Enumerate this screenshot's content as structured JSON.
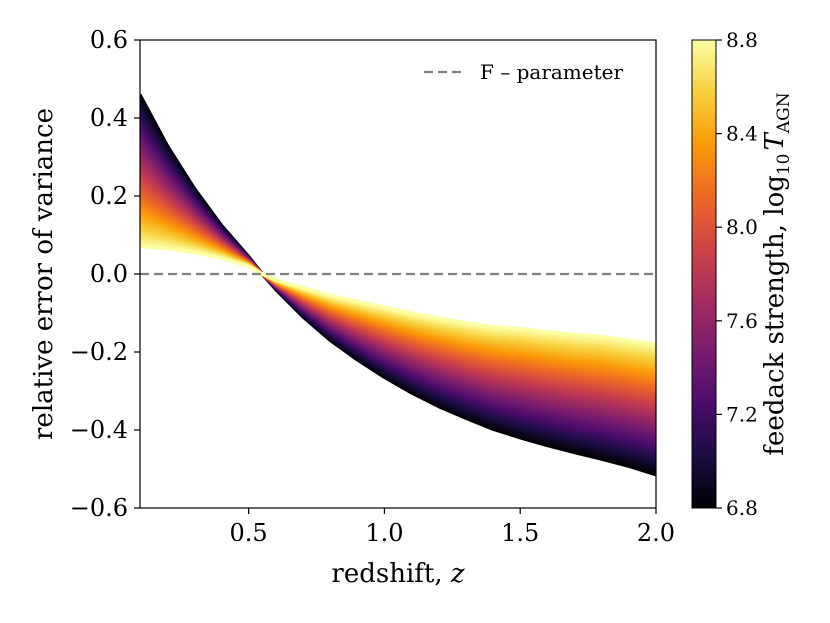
{
  "chart_data": {
    "type": "area",
    "xlabel": "redshift, ",
    "xlabel_var": "z",
    "ylabel": "relative error of variance",
    "xlim": [
      0.1,
      2.0
    ],
    "ylim": [
      -0.6,
      0.6
    ],
    "x_ticks": [
      {
        "value": 0.5,
        "label": "0.5"
      },
      {
        "value": 1.0,
        "label": "1.0"
      },
      {
        "value": 1.5,
        "label": "1.5"
      },
      {
        "value": 2.0,
        "label": "2.0"
      }
    ],
    "y_ticks": [
      {
        "value": 0.6,
        "label": "0.6"
      },
      {
        "value": 0.4,
        "label": "0.4"
      },
      {
        "value": 0.2,
        "label": "0.2"
      },
      {
        "value": 0.0,
        "label": "0.0"
      },
      {
        "value": -0.2,
        "label": "−0.2"
      },
      {
        "value": -0.4,
        "label": "−0.4"
      },
      {
        "value": -0.6,
        "label": "−0.6"
      }
    ],
    "reference_line": {
      "y": 0.0,
      "label": "F – parameter",
      "style": "dashed",
      "color": "#808080"
    },
    "legend": {
      "location": "top-right",
      "entries": [
        "F – parameter"
      ]
    },
    "band": {
      "x": [
        0.1,
        0.2,
        0.3,
        0.4,
        0.5,
        0.55,
        0.6,
        0.7,
        0.8,
        0.9,
        1.0,
        1.1,
        1.2,
        1.3,
        1.4,
        1.5,
        1.6,
        1.7,
        1.8,
        1.9,
        2.0
      ],
      "curve_at_min_strength": [
        0.46,
        0.33,
        0.22,
        0.125,
        0.045,
        0.0,
        -0.04,
        -0.11,
        -0.17,
        -0.22,
        -0.265,
        -0.305,
        -0.34,
        -0.37,
        -0.398,
        -0.42,
        -0.44,
        -0.458,
        -0.475,
        -0.493,
        -0.515
      ],
      "curve_at_max_strength": [
        0.07,
        0.065,
        0.055,
        0.04,
        0.02,
        0.0,
        -0.015,
        -0.035,
        -0.055,
        -0.07,
        -0.085,
        -0.1,
        -0.113,
        -0.125,
        -0.135,
        -0.14,
        -0.148,
        -0.155,
        -0.16,
        -0.17,
        -0.18
      ]
    },
    "colorbar": {
      "label": "feedack strength, log",
      "label_sub": "10",
      "label_var": "T",
      "label_var_sub": "AGN",
      "min": 6.8,
      "max": 8.8,
      "ticks": [
        {
          "value": 6.8,
          "label": "6.8"
        },
        {
          "value": 7.2,
          "label": "7.2"
        },
        {
          "value": 7.6,
          "label": "7.6"
        },
        {
          "value": 8.0,
          "label": "8.0"
        },
        {
          "value": 8.4,
          "label": "8.4"
        },
        {
          "value": 8.8,
          "label": "8.8"
        }
      ],
      "colormap": "inferno",
      "colormap_stops": [
        "#000004",
        "#1b0c41",
        "#4a0c6b",
        "#781c6d",
        "#a52c60",
        "#cf4446",
        "#ed6925",
        "#fb9b06",
        "#f7d13d",
        "#fcffa4"
      ]
    }
  }
}
